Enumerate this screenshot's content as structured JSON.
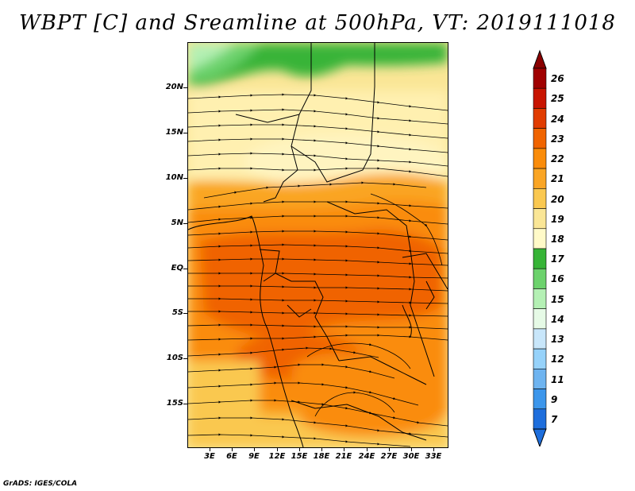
{
  "title": "WBPT [C] and Sreamline at 500hPa, VT: 2019111018",
  "credit": "GrADS: IGES/COLA",
  "map": {
    "lat_labels": [
      "20N",
      "15N",
      "10N",
      "5N",
      "EQ",
      "5S",
      "10S",
      "15S"
    ],
    "lon_labels": [
      "3E",
      "6E",
      "9E",
      "12E",
      "15E",
      "18E",
      "21E",
      "24E",
      "27E",
      "30E",
      "33E"
    ]
  },
  "colorbar": {
    "labels": [
      "26",
      "25",
      "24",
      "23",
      "22",
      "21",
      "20",
      "19",
      "18",
      "17",
      "16",
      "15",
      "14",
      "13",
      "12",
      "11",
      "9",
      "7"
    ],
    "colors": [
      "#a00000",
      "#c81400",
      "#e13c00",
      "#f06400",
      "#fa8c0a",
      "#faa524",
      "#fac850",
      "#fae696",
      "#fffac8",
      "#37b437",
      "#6cd26c",
      "#b4f0b4",
      "#e6fae6",
      "#c8e6fa",
      "#96d2fa",
      "#6eb4f0",
      "#3c96eb",
      "#1e6edc"
    ]
  }
}
